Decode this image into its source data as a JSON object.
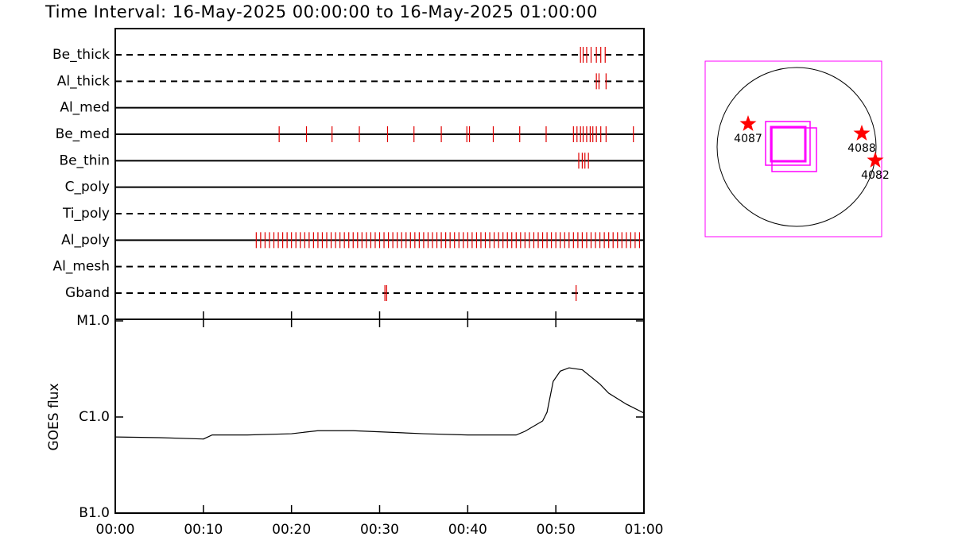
{
  "chart_data": [
    {
      "type": "timeline",
      "title": "Time Interval: 16-May-2025 00:00:00 to 16-May-2025 01:00:00",
      "categories": [
        "Be_thick",
        "Al_thick",
        "Al_med",
        "Be_med",
        "Be_thin",
        "C_poly",
        "Ti_poly",
        "Al_poly",
        "Al_mesh",
        "Gband"
      ],
      "line_styles": [
        "dashed",
        "dashed",
        "solid",
        "solid",
        "solid",
        "solid",
        "dashed",
        "solid",
        "dashed",
        "dashed"
      ],
      "color": "#e00000",
      "xlim": [
        0,
        60
      ],
      "events": [
        [
          52.8,
          53.1,
          53.5,
          54.0,
          54.6,
          55.1,
          55.6
        ],
        [
          54.6,
          54.9,
          55.7
        ],
        [],
        [
          18.6,
          21.7,
          24.6,
          27.7,
          30.9,
          33.9,
          37.0,
          39.9,
          40.2,
          42.9,
          45.9,
          48.9,
          52.0,
          52.4,
          52.8,
          53.1,
          53.5,
          53.9,
          54.2,
          54.6,
          55.1,
          55.7,
          58.8
        ],
        [
          52.6,
          53.0,
          53.3,
          53.7
        ],
        [],
        [],
        [
          16.0,
          16.5,
          17.0,
          17.5,
          18.0,
          18.5,
          19.0,
          19.5,
          20.0,
          20.5,
          21.0,
          21.5,
          22.0,
          22.5,
          23.0,
          23.5,
          24.0,
          24.5,
          25.0,
          25.5,
          26.0,
          26.5,
          27.0,
          27.5,
          28.0,
          28.5,
          29.0,
          29.5,
          30.0,
          30.5,
          31.0,
          31.5,
          32.0,
          32.5,
          33.0,
          33.5,
          34.0,
          34.5,
          35.0,
          35.5,
          36.0,
          36.5,
          37.0,
          37.5,
          38.0,
          38.5,
          39.0,
          39.5,
          40.0,
          40.5,
          41.0,
          41.5,
          42.0,
          42.5,
          43.0,
          43.5,
          44.0,
          44.5,
          45.0,
          45.5,
          46.0,
          46.5,
          47.0,
          47.5,
          48.0,
          48.5,
          49.0,
          49.5,
          50.0,
          50.5,
          51.0,
          51.5,
          52.0,
          52.5,
          53.0,
          53.5,
          54.0,
          54.5,
          55.0,
          55.5,
          56.0,
          56.5,
          57.0,
          57.5,
          58.0,
          58.5,
          59.0,
          59.5
        ],
        [],
        [
          30.6,
          30.8,
          52.3
        ]
      ]
    },
    {
      "type": "line",
      "ylabel": "GOES flux",
      "color": "#000000",
      "log_y": true,
      "x": [
        0,
        5,
        10,
        11,
        15,
        20,
        23,
        27,
        35,
        40,
        45.5,
        46.5,
        48.5,
        49.0,
        49.7,
        50.5,
        51.5,
        53.0,
        55.0,
        56.0,
        58.0,
        60.0
      ],
      "values": [
        6.2e-07,
        6.1e-07,
        5.9e-07,
        6.5e-07,
        6.5e-07,
        6.7e-07,
        7.2e-07,
        7.2e-07,
        6.7e-07,
        6.5e-07,
        6.5e-07,
        7.1e-07,
        9.1e-07,
        1.12e-06,
        2.35e-06,
        3e-06,
        3.25e-06,
        3.1e-06,
        2.2e-06,
        1.77e-06,
        1.36e-06,
        1.1e-06
      ],
      "xlim": [
        0,
        60
      ],
      "xticks": [
        {
          "value": 0,
          "label": "00:00"
        },
        {
          "value": 10,
          "label": "00:10"
        },
        {
          "value": 20,
          "label": "00:20"
        },
        {
          "value": 30,
          "label": "00:30"
        },
        {
          "value": 40,
          "label": "00:40"
        },
        {
          "value": 50,
          "label": "00:50"
        },
        {
          "value": 60,
          "label": "01:00"
        }
      ],
      "ylim": [
        1e-07,
        1e-05
      ],
      "yticks": [
        {
          "value": 1e-07,
          "label": "B1.0"
        },
        {
          "value": 1e-06,
          "label": "C1.0"
        },
        {
          "value": 1e-05,
          "label": "M1.0"
        }
      ]
    },
    {
      "type": "map",
      "labels": [
        "4087",
        "4088",
        "4082"
      ],
      "star_color": "#ff0000",
      "fov_color": "#ff00ff"
    }
  ]
}
